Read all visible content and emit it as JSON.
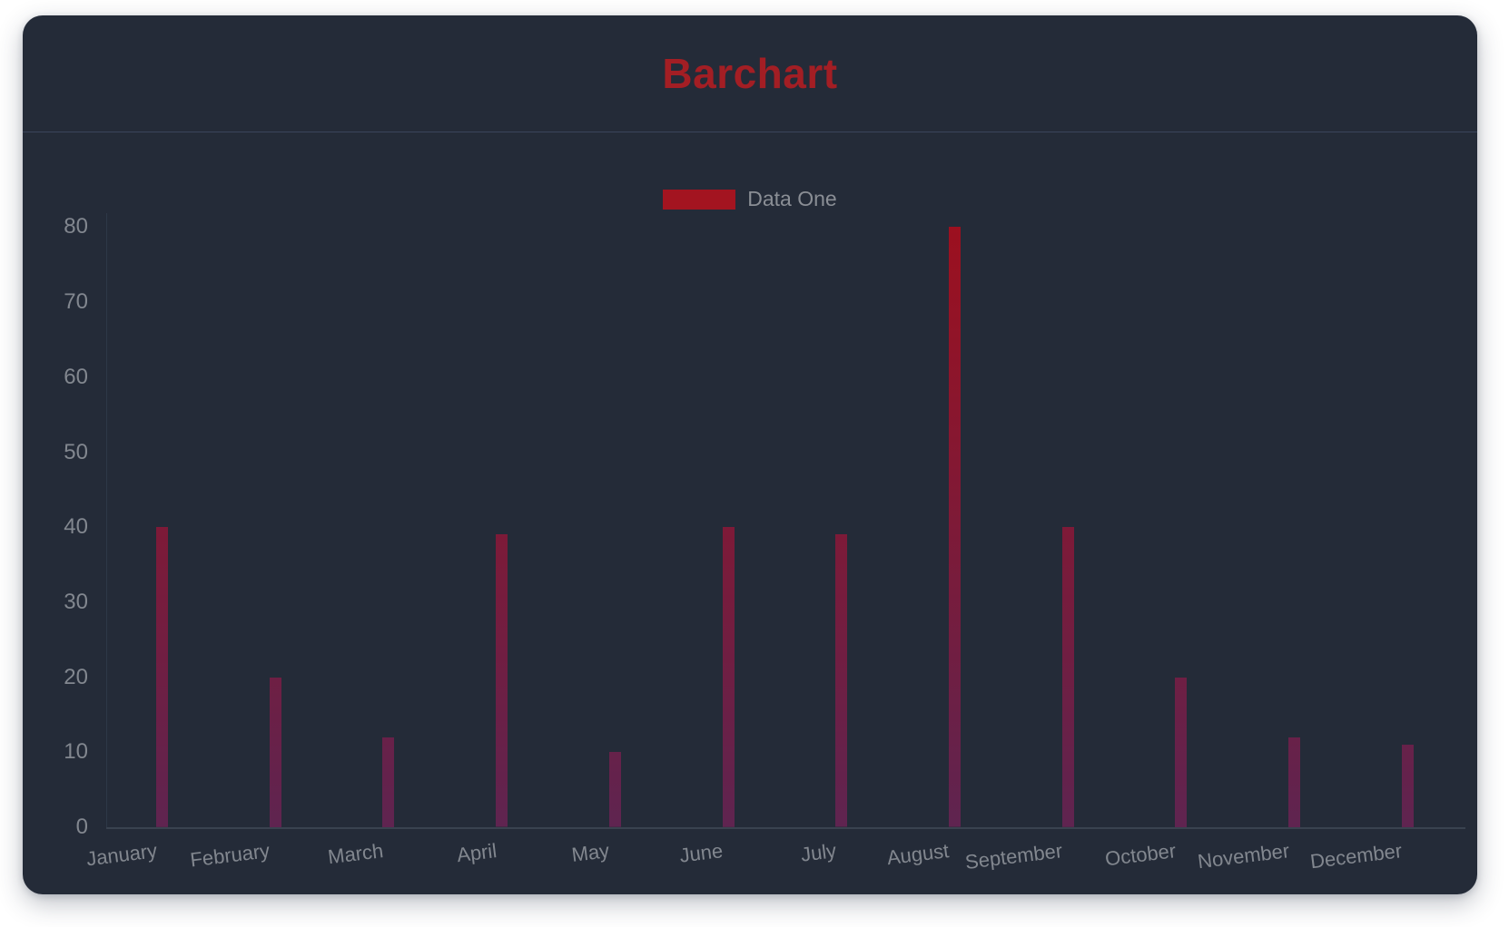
{
  "header": {
    "title": "Barchart",
    "title_color": "#A31E24"
  },
  "legend": {
    "label": "Data One",
    "swatch_color": "#A31420",
    "position": "top"
  },
  "chart_data": {
    "type": "bar",
    "title": "Barchart",
    "categories": [
      "January",
      "February",
      "March",
      "April",
      "May",
      "June",
      "July",
      "August",
      "September",
      "October",
      "November",
      "December"
    ],
    "series": [
      {
        "name": "Data One",
        "values": [
          40,
          20,
          12,
          39,
          10,
          40,
          39,
          80,
          40,
          20,
          12,
          11
        ]
      }
    ],
    "xlabel": "",
    "ylabel": "",
    "ylim": [
      0,
      80
    ],
    "yticks": [
      0,
      10,
      20,
      30,
      40,
      50,
      60,
      70,
      80
    ],
    "grid": false,
    "legend_position": "top",
    "x_label_rotation_deg": -7,
    "bar_gradient_top": "#9C101F",
    "bar_gradient_bottom": "#5F2450"
  },
  "colors": {
    "panel_background": "#242B38",
    "page_background": "#ffffff",
    "header_divider": "#3A455B",
    "axis_text": "#82878F",
    "legend_text": "#8A8E95",
    "axis_line": "#39424F"
  }
}
